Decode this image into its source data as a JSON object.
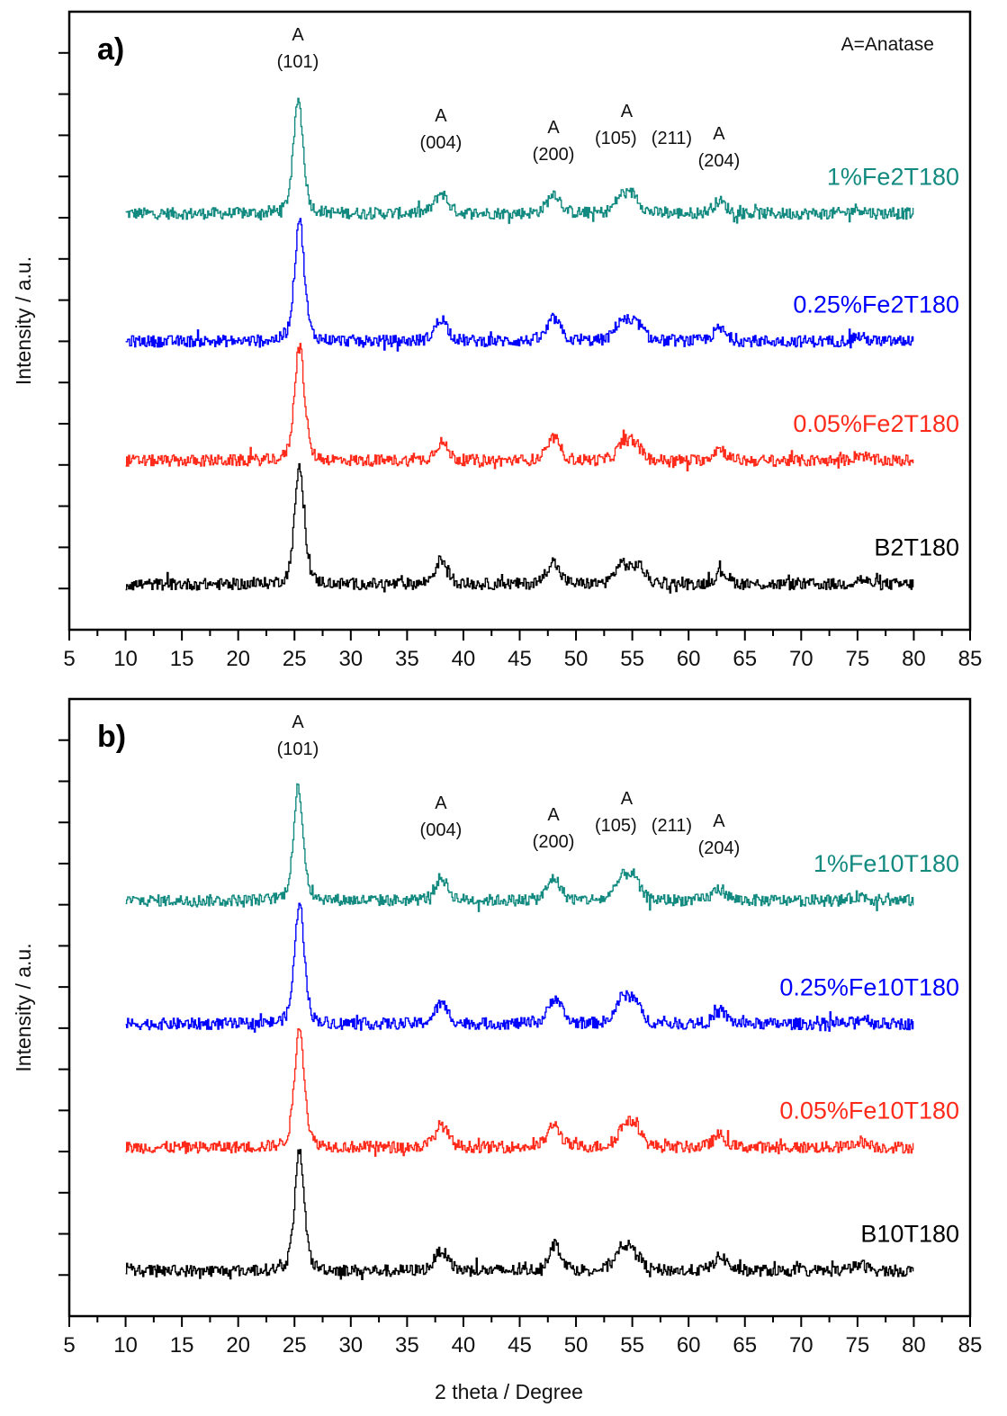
{
  "chart_data": [
    {
      "type": "line",
      "panel_label": "a)",
      "note": "A=Anatase",
      "xlabel": "",
      "ylabel": "Intensity / a.u.",
      "xlim": [
        5,
        85
      ],
      "xticks": [
        5,
        10,
        15,
        20,
        25,
        30,
        35,
        40,
        45,
        50,
        55,
        60,
        65,
        70,
        75,
        80,
        85
      ],
      "ylim": [
        0,
        15
      ],
      "y_tick_labels_shown": false,
      "grid": false,
      "x_data_range": [
        10,
        80
      ],
      "annotations": [
        {
          "x": 25.3,
          "phase": "A",
          "hkl": "(101)"
        },
        {
          "x": 38.0,
          "phase": "A",
          "hkl": "(004)"
        },
        {
          "x": 48.0,
          "phase": "A",
          "hkl": "(200)"
        },
        {
          "x": 54.5,
          "phase": "A",
          "hkl": "(105)",
          "hkl2": "(211)"
        },
        {
          "x": 62.7,
          "phase": "A",
          "hkl": "(204)"
        }
      ],
      "series": [
        {
          "name": "1%Fe2T180",
          "color": "#138a80",
          "baseline": 10.1,
          "peaks": [
            [
              25.3,
              2.8
            ],
            [
              38.0,
              0.5
            ],
            [
              48.0,
              0.5
            ],
            [
              54.0,
              0.4
            ],
            [
              55.1,
              0.4
            ],
            [
              62.7,
              0.3
            ],
            [
              75.0,
              0.12
            ]
          ]
        },
        {
          "name": "0.25%Fe2T180",
          "color": "#0000ff",
          "baseline": 7.0,
          "peaks": [
            [
              25.4,
              3.0
            ],
            [
              38.0,
              0.55
            ],
            [
              48.0,
              0.55
            ],
            [
              54.0,
              0.5
            ],
            [
              55.4,
              0.4
            ],
            [
              62.7,
              0.3
            ],
            [
              75.0,
              0.12
            ]
          ]
        },
        {
          "name": "0.05%Fe2T180",
          "color": "#ff2a1a",
          "baseline": 4.1,
          "peaks": [
            [
              25.4,
              2.9
            ],
            [
              38.0,
              0.45
            ],
            [
              48.0,
              0.55
            ],
            [
              54.2,
              0.4
            ],
            [
              55.2,
              0.35
            ],
            [
              62.7,
              0.3
            ],
            [
              75.2,
              0.15
            ]
          ]
        },
        {
          "name": "B2T180",
          "color": "#000000",
          "baseline": 1.1,
          "peaks": [
            [
              25.4,
              2.9
            ],
            [
              38.0,
              0.6
            ],
            [
              47.9,
              0.55
            ],
            [
              54.0,
              0.5
            ],
            [
              55.5,
              0.45
            ],
            [
              62.9,
              0.3
            ],
            [
              75.2,
              0.12
            ]
          ]
        }
      ]
    },
    {
      "type": "line",
      "panel_label": "b)",
      "xlabel": "2 theta / Degree",
      "ylabel": "Intensity / a.u.",
      "xlim": [
        5,
        85
      ],
      "xticks": [
        5,
        10,
        15,
        20,
        25,
        30,
        35,
        40,
        45,
        50,
        55,
        60,
        65,
        70,
        75,
        80,
        85
      ],
      "ylim": [
        0,
        15
      ],
      "y_tick_labels_shown": false,
      "grid": false,
      "x_data_range": [
        10,
        80
      ],
      "annotations": [
        {
          "x": 25.3,
          "phase": "A",
          "hkl": "(101)"
        },
        {
          "x": 38.0,
          "phase": "A",
          "hkl": "(004)"
        },
        {
          "x": 48.0,
          "phase": "A",
          "hkl": "(200)"
        },
        {
          "x": 54.5,
          "phase": "A",
          "hkl": "(105)",
          "hkl2": "(211)"
        },
        {
          "x": 62.7,
          "phase": "A",
          "hkl": "(204)"
        }
      ],
      "series": [
        {
          "name": "1%Fe10T180",
          "color": "#138a80",
          "baseline": 10.1,
          "peaks": [
            [
              25.3,
              2.8
            ],
            [
              38.0,
              0.55
            ],
            [
              48.0,
              0.55
            ],
            [
              54.0,
              0.45
            ],
            [
              55.0,
              0.55
            ],
            [
              62.7,
              0.3
            ],
            [
              75.2,
              0.12
            ]
          ]
        },
        {
          "name": "0.25%Fe10T180",
          "color": "#0000ff",
          "baseline": 7.1,
          "peaks": [
            [
              25.4,
              3.0
            ],
            [
              38.0,
              0.5
            ],
            [
              48.1,
              0.65
            ],
            [
              54.0,
              0.55
            ],
            [
              55.1,
              0.55
            ],
            [
              62.8,
              0.3
            ],
            [
              75.5,
              0.15
            ]
          ]
        },
        {
          "name": "0.05%Fe10T180",
          "color": "#ff2a1a",
          "baseline": 4.1,
          "peaks": [
            [
              25.4,
              3.0
            ],
            [
              38.0,
              0.55
            ],
            [
              48.0,
              0.55
            ],
            [
              54.2,
              0.45
            ],
            [
              55.2,
              0.5
            ],
            [
              62.7,
              0.3
            ],
            [
              75.2,
              0.15
            ]
          ]
        },
        {
          "name": "B10T180",
          "color": "#000000",
          "baseline": 1.1,
          "peaks": [
            [
              25.4,
              2.9
            ],
            [
              38.0,
              0.5
            ],
            [
              48.1,
              0.65
            ],
            [
              54.0,
              0.55
            ],
            [
              55.1,
              0.45
            ],
            [
              62.8,
              0.35
            ],
            [
              75.2,
              0.15
            ]
          ]
        }
      ]
    }
  ]
}
